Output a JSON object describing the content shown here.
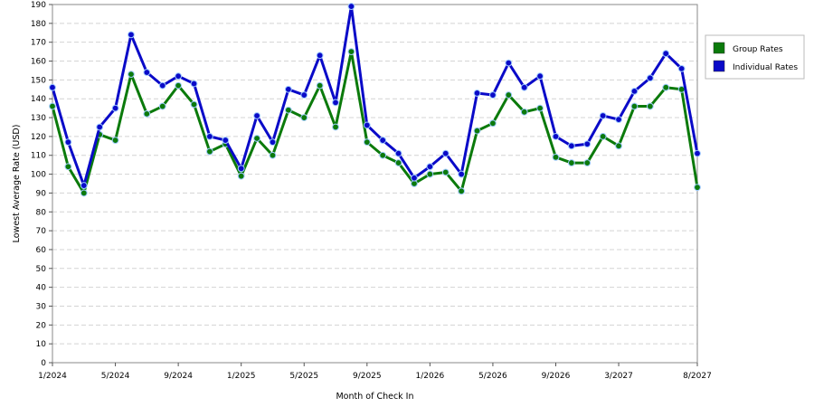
{
  "chart_data": {
    "type": "line",
    "xlabel": "Month of Check In",
    "ylabel": "Lowest Average Rate (USD)",
    "ylim": [
      0,
      190
    ],
    "y_ticks": [
      0,
      10,
      20,
      30,
      40,
      50,
      60,
      70,
      80,
      90,
      100,
      110,
      120,
      130,
      140,
      150,
      160,
      170,
      180,
      190
    ],
    "x_tick_labels": [
      {
        "index": 0,
        "label": "1/2024"
      },
      {
        "index": 4,
        "label": "5/2024"
      },
      {
        "index": 8,
        "label": "9/2024"
      },
      {
        "index": 12,
        "label": "1/2025"
      },
      {
        "index": 16,
        "label": "5/2025"
      },
      {
        "index": 20,
        "label": "9/2025"
      },
      {
        "index": 24,
        "label": "1/2026"
      },
      {
        "index": 28,
        "label": "5/2026"
      },
      {
        "index": 32,
        "label": "9/2026"
      },
      {
        "index": 36,
        "label": "3/2027"
      },
      {
        "index": 41,
        "label": "8/2027"
      }
    ],
    "grid": true,
    "legend_position": "right",
    "series": [
      {
        "name": "Group Rates",
        "color": "#0b7a0b",
        "values": [
          136,
          104,
          90,
          121,
          118,
          153,
          132,
          136,
          147,
          137,
          112,
          116,
          99,
          119,
          110,
          134,
          130,
          147,
          125,
          165,
          117,
          110,
          106,
          95,
          100,
          101,
          91,
          123,
          127,
          142,
          133,
          135,
          109,
          106,
          106,
          120,
          115,
          136,
          136,
          146,
          145,
          93
        ]
      },
      {
        "name": "Individual Rates",
        "color": "#0a0ac8",
        "values": [
          146,
          117,
          94,
          125,
          135,
          174,
          154,
          147,
          152,
          148,
          120,
          118,
          103,
          131,
          117,
          145,
          142,
          163,
          138,
          189,
          126,
          118,
          111,
          98,
          104,
          111,
          100,
          143,
          142,
          159,
          146,
          152,
          120,
          115,
          116,
          131,
          129,
          144,
          151,
          164,
          156,
          111
        ]
      }
    ]
  }
}
